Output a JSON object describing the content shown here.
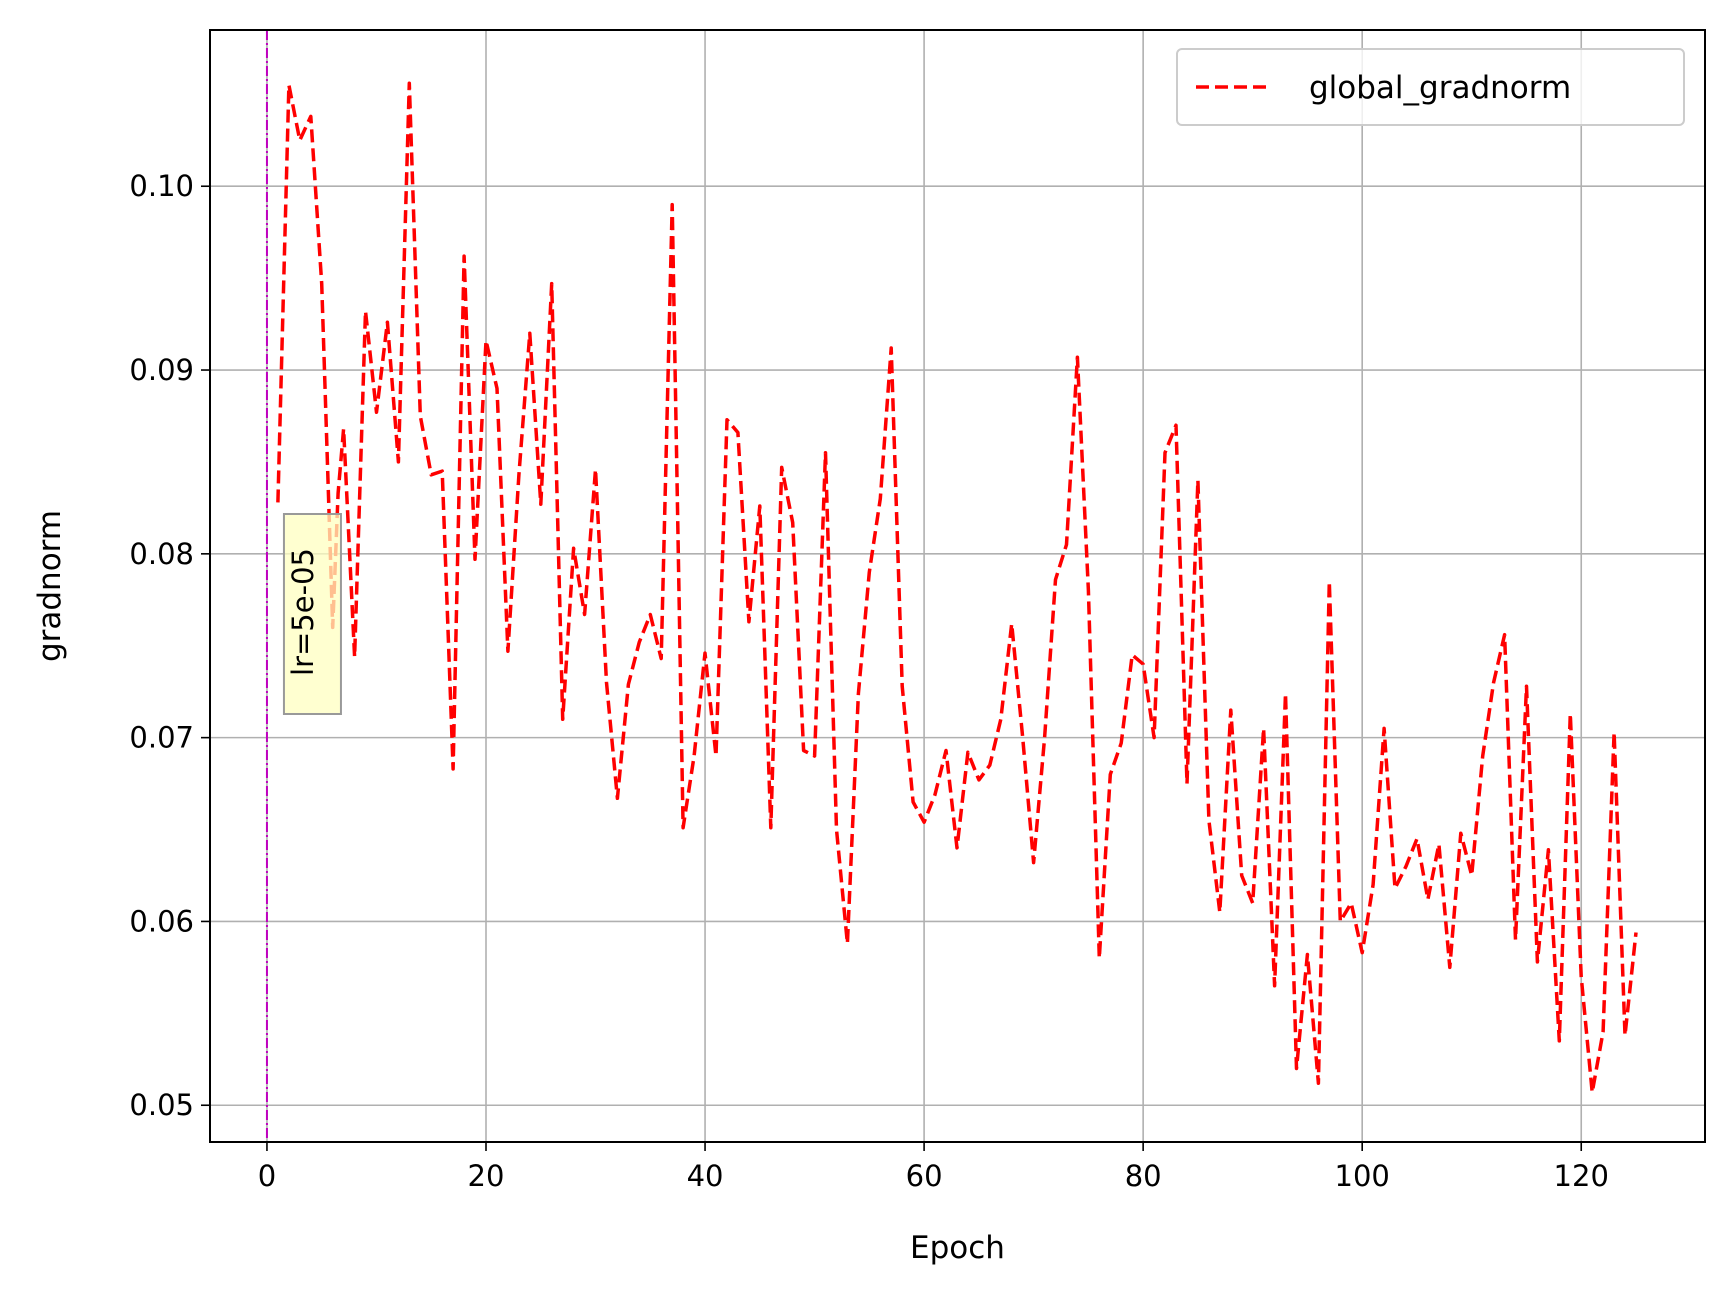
{
  "chart_data": {
    "type": "line",
    "xlabel": "Epoch",
    "ylabel": "gradnorm",
    "xlim": [
      -5.2,
      131.3
    ],
    "ylim": [
      0.048,
      0.1085
    ],
    "xticks": [
      0,
      20,
      40,
      60,
      80,
      100,
      120
    ],
    "xtick_labels": [
      "0",
      "20",
      "40",
      "60",
      "80",
      "100",
      "120"
    ],
    "yticks": [
      0.05,
      0.06,
      0.07,
      0.08,
      0.09,
      0.1
    ],
    "ytick_labels": [
      "0.05",
      "0.06",
      "0.07",
      "0.08",
      "0.09",
      "0.10"
    ],
    "grid": true,
    "legend_placement": "top-right",
    "series": [
      {
        "name": "global_gradnorm",
        "color": "#ff0000",
        "style": "dashed",
        "x": [
          1,
          2,
          3,
          4,
          5,
          6,
          6.5,
          7,
          8,
          9,
          10,
          11,
          12,
          13,
          14,
          15,
          16,
          17,
          18,
          19,
          20,
          21,
          22,
          23,
          24,
          25,
          26,
          27,
          28,
          29,
          30,
          31,
          32,
          33,
          34,
          35,
          36,
          37,
          38,
          39,
          40,
          41,
          42,
          43,
          44,
          45,
          46,
          47,
          48,
          49,
          50,
          51,
          52,
          53,
          54,
          55,
          56,
          57,
          58,
          59,
          60,
          61,
          62,
          63,
          64,
          65,
          66,
          67,
          68,
          69,
          70,
          71,
          72,
          73,
          74,
          75,
          76,
          77,
          78,
          79,
          80,
          81,
          82,
          83,
          84,
          85,
          86,
          87,
          88,
          89,
          90,
          91,
          92,
          93,
          94,
          95,
          96,
          97,
          98,
          99,
          100,
          101,
          102,
          103,
          104,
          105,
          106,
          107,
          108,
          109,
          110,
          111,
          112,
          113,
          114,
          115,
          116,
          117,
          118,
          119,
          120,
          121,
          122,
          123,
          124,
          125
        ],
        "y": [
          0.0828,
          0.1055,
          0.1025,
          0.1038,
          0.0947,
          0.076,
          0.0833,
          0.0868,
          0.0744,
          0.0932,
          0.0877,
          0.0926,
          0.085,
          0.1056,
          0.0875,
          0.0843,
          0.0845,
          0.0683,
          0.0962,
          0.0797,
          0.0916,
          0.089,
          0.0747,
          0.0843,
          0.092,
          0.0827,
          0.0947,
          0.071,
          0.0803,
          0.0767,
          0.0846,
          0.073,
          0.0667,
          0.0729,
          0.0752,
          0.0767,
          0.0743,
          0.099,
          0.0651,
          0.069,
          0.0746,
          0.069,
          0.0873,
          0.0866,
          0.0763,
          0.0826,
          0.0651,
          0.0847,
          0.0817,
          0.0693,
          0.069,
          0.0855,
          0.065,
          0.0588,
          0.0724,
          0.079,
          0.083,
          0.0912,
          0.0728,
          0.0665,
          0.0654,
          0.0669,
          0.0693,
          0.064,
          0.0692,
          0.0677,
          0.0685,
          0.071,
          0.0762,
          0.07,
          0.0632,
          0.07,
          0.0786,
          0.0805,
          0.0907,
          0.078,
          0.058,
          0.068,
          0.0697,
          0.0745,
          0.074,
          0.07,
          0.0855,
          0.087,
          0.0675,
          0.084,
          0.0655,
          0.0605,
          0.0715,
          0.0625,
          0.061,
          0.0705,
          0.0565,
          0.0724,
          0.052,
          0.0582,
          0.0512,
          0.0785,
          0.06,
          0.061,
          0.0583,
          0.062,
          0.0705,
          0.0618,
          0.063,
          0.0645,
          0.0612,
          0.0642,
          0.0575,
          0.0648,
          0.0625,
          0.069,
          0.073,
          0.0756,
          0.059,
          0.0728,
          0.0578,
          0.0639,
          0.0535,
          0.0713,
          0.057,
          0.0507,
          0.054,
          0.0703,
          0.0538,
          0.0594
        ]
      }
    ],
    "vline": {
      "x": 0,
      "color": "#bf00bf",
      "style": "dash-dot"
    },
    "annotation": {
      "text": "lr=5e-05",
      "x": 0,
      "rotation": "vertical",
      "background": "#ffffc0"
    }
  }
}
